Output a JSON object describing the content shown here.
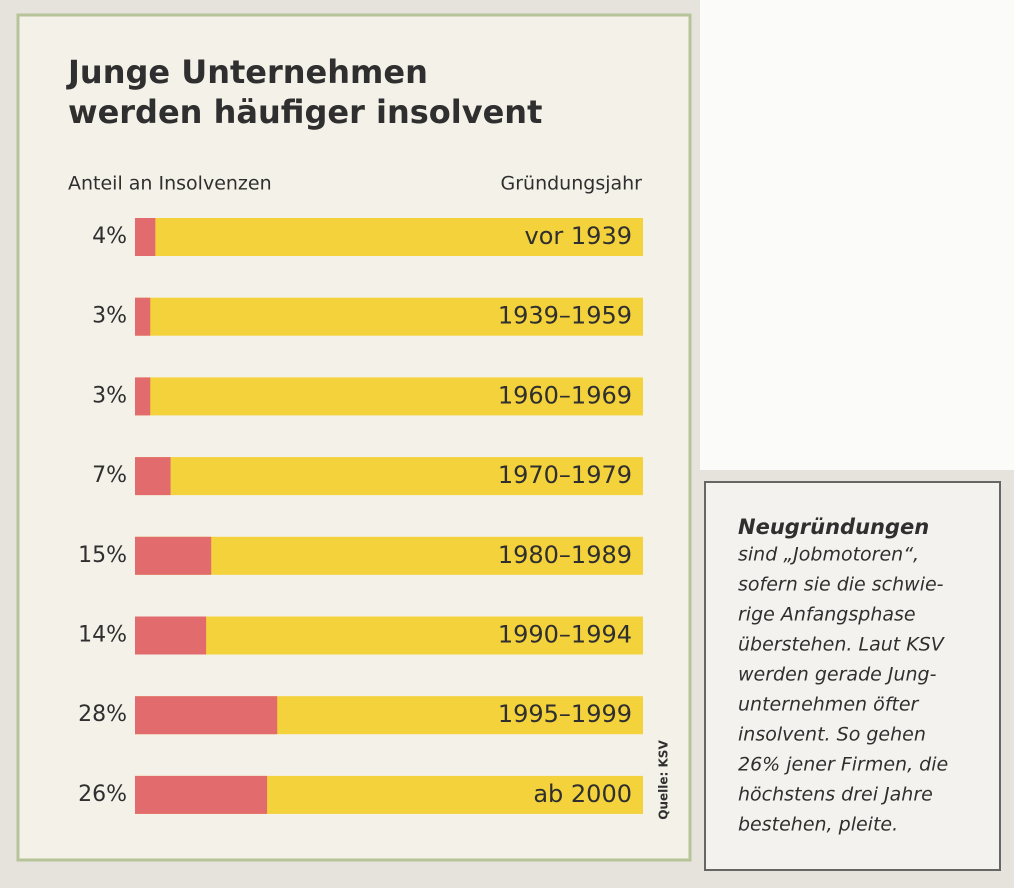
{
  "chart_data": {
    "type": "bar",
    "title": [
      "Junge Unternehmen",
      "werden häufiger insolvent"
    ],
    "value_axis_label": "Anteil an Insolvenzen",
    "category_axis_label": "Gründungsjahr",
    "categories": [
      "vor 1939",
      "1939–1959",
      "1960–1969",
      "1970–1979",
      "1980–1989",
      "1990–1994",
      "1995–1999",
      "ab 2000"
    ],
    "values": [
      4,
      3,
      3,
      7,
      15,
      14,
      28,
      26
    ],
    "value_labels": [
      "4%",
      "3%",
      "3%",
      "7%",
      "15%",
      "14%",
      "28%",
      "26%"
    ],
    "color": "#e26b6e",
    "track_color": "#f3d23c",
    "xlim": [
      0,
      100
    ],
    "source": "Quelle: KSV"
  },
  "sidebar": {
    "heading": "Neugründungen",
    "lines": [
      "sind „Jobmotoren“,",
      "sofern sie die schwie-",
      "rige Anfangsphase",
      "überstehen. Laut KSV",
      "werden gerade Jung-",
      "unternehmen öfter",
      "insolvent. So gehen",
      "26% jener Firmen, die",
      "höchstens drei Jahre",
      "bestehen, pleite."
    ]
  }
}
